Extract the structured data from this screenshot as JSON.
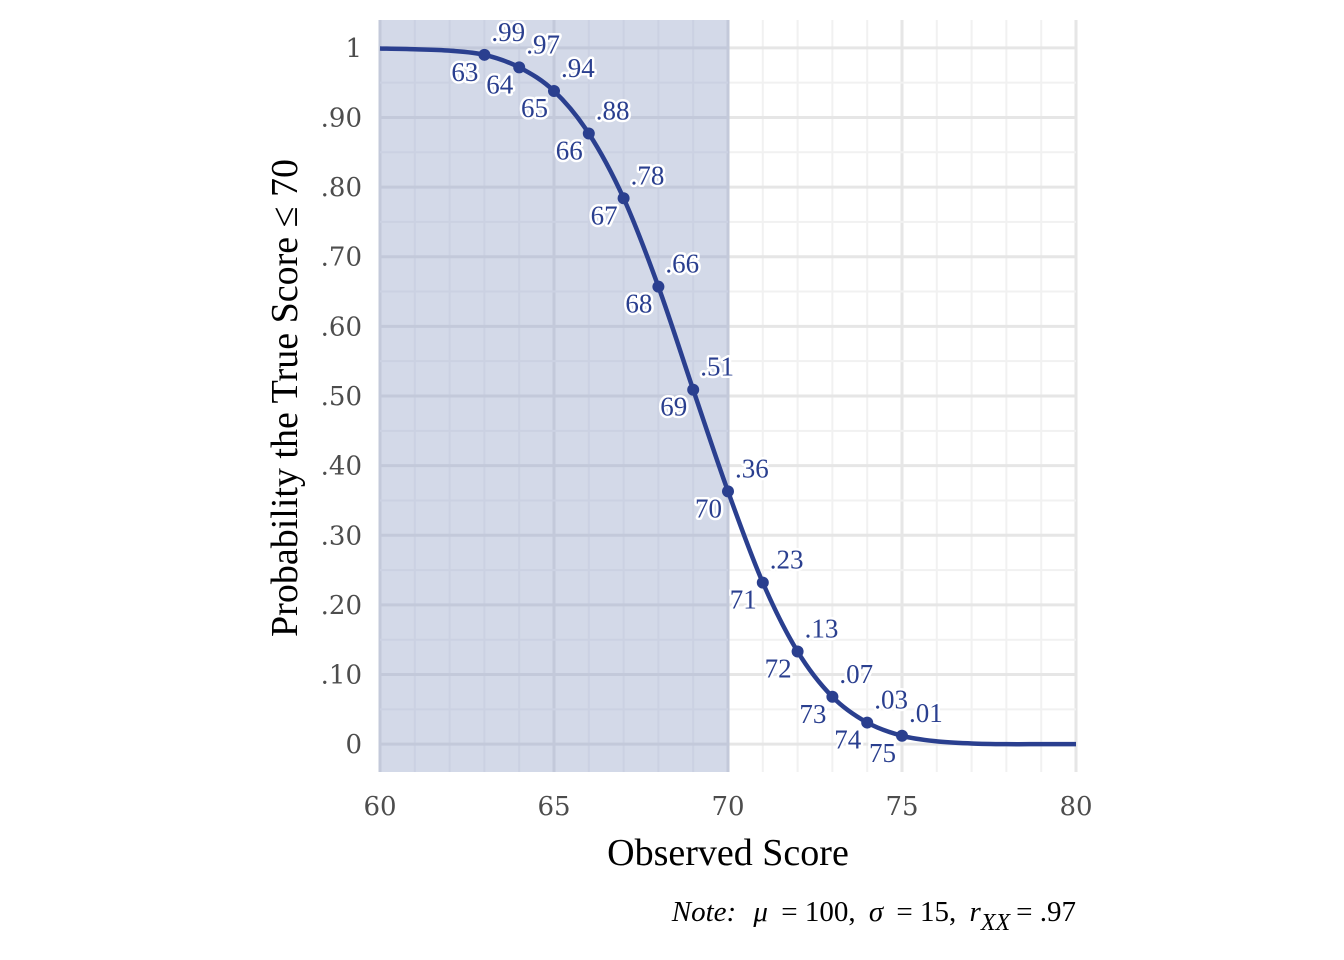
{
  "chart_data": {
    "type": "line",
    "xlabel": "Observed Score",
    "ylabel": "Probability the True Score ≤ 70",
    "xlim": [
      60,
      80
    ],
    "ylim": [
      -0.04,
      1.04
    ],
    "x_ticks": [
      60,
      65,
      70,
      75,
      80
    ],
    "x_tick_labels": [
      "60",
      "65",
      "70",
      "75",
      "80"
    ],
    "y_ticks": [
      0,
      0.1,
      0.2,
      0.3,
      0.4,
      0.5,
      0.6,
      0.7,
      0.8,
      0.9,
      1
    ],
    "y_tick_labels": [
      "0",
      ".10",
      ".20",
      ".30",
      ".40",
      ".50",
      ".60",
      ".70",
      ".80",
      ".90",
      "1"
    ],
    "grid": true,
    "shaded_region": {
      "x_from": 60,
      "x_to": 70
    },
    "curve": {
      "x": [
        60,
        61,
        62,
        63,
        64,
        65,
        66,
        67,
        68,
        69,
        70,
        71,
        72,
        73,
        74,
        75,
        76,
        77,
        78,
        79,
        80
      ],
      "y": [
        0.999,
        0.998,
        0.996,
        0.99,
        0.972,
        0.938,
        0.877,
        0.784,
        0.657,
        0.509,
        0.363,
        0.232,
        0.133,
        0.068,
        0.031,
        0.012,
        0.004,
        0.001,
        0.0,
        0.0,
        0.0
      ]
    },
    "points": [
      {
        "x": 63,
        "y": 0.99,
        "label": ".99",
        "score_label": "63"
      },
      {
        "x": 64,
        "y": 0.972,
        "label": ".97",
        "score_label": "64"
      },
      {
        "x": 65,
        "y": 0.938,
        "label": ".94",
        "score_label": "65"
      },
      {
        "x": 66,
        "y": 0.877,
        "label": ".88",
        "score_label": "66"
      },
      {
        "x": 67,
        "y": 0.784,
        "label": ".78",
        "score_label": "67"
      },
      {
        "x": 68,
        "y": 0.657,
        "label": ".66",
        "score_label": "68"
      },
      {
        "x": 69,
        "y": 0.509,
        "label": ".51",
        "score_label": "69"
      },
      {
        "x": 70,
        "y": 0.363,
        "label": ".36",
        "score_label": "70"
      },
      {
        "x": 71,
        "y": 0.232,
        "label": ".23",
        "score_label": "71"
      },
      {
        "x": 72,
        "y": 0.133,
        "label": ".13",
        "score_label": "72"
      },
      {
        "x": 73,
        "y": 0.068,
        "label": ".07",
        "score_label": "73"
      },
      {
        "x": 74,
        "y": 0.031,
        "label": ".03",
        "score_label": "74"
      },
      {
        "x": 75,
        "y": 0.012,
        "label": ".01",
        "score_label": "75"
      }
    ],
    "note": {
      "lead": "Note:",
      "mu_symbol": "μ",
      "mu_value": "= 100,",
      "sigma_symbol": "σ",
      "sigma_value": "= 15,",
      "r_symbol": "r",
      "r_subscript": "XX",
      "r_value": "= .97"
    },
    "colors": {
      "line": "#2a3f8f",
      "shade": "#d3d9e8",
      "grid_major": "#e6e6e6",
      "grid_minor": "#f1f1f1",
      "grid_major_shaded": "#c3c9da",
      "grid_minor_shaded": "#cbd1e2"
    }
  }
}
